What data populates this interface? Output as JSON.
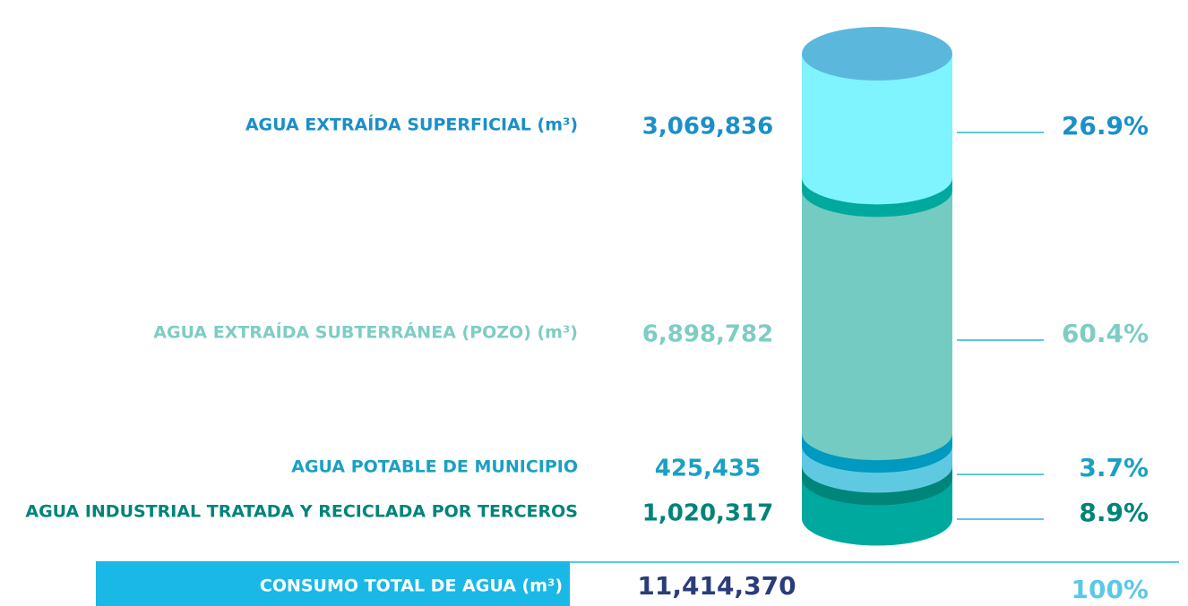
{
  "chart_data": {
    "type": "cylinder",
    "categories": [
      "AGUA EXTRAÍDA SUPERFICIAL (m³)",
      "AGUA EXTRAÍDA SUBTERRÁNEA (POZO) (m³)",
      "AGUA POTABLE DE MUNICIPIO",
      "AGUA INDUSTRIAL TRATADA Y RECICLADA POR TERCEROS"
    ],
    "values": [
      3069836,
      6898782,
      425435,
      1020317
    ],
    "value_labels": [
      "3,069,836",
      "6,898,782",
      "425,435",
      "1,020,317"
    ],
    "shares": [
      26.9,
      60.4,
      3.7,
      8.9
    ],
    "share_labels": [
      "26.9%",
      "60.4%",
      "3.7%",
      "8.9%"
    ],
    "colors": [
      "#7ff3fe",
      "#74cbc1",
      "#5fc9e2",
      "#00a99d"
    ],
    "band_colors": [
      "#5bb8dc",
      "#00a99d",
      "#0099c0",
      "#00857a"
    ],
    "label_colors": [
      "#1a8fc9",
      "#7ecdc4",
      "#1aa0c4",
      "#00847a"
    ],
    "total_label": "CONSUMO TOTAL DE AGUA (m³)",
    "total": 11414370,
    "total_value_label": "11,414,370",
    "total_share": 100,
    "total_share_label": "100%"
  }
}
